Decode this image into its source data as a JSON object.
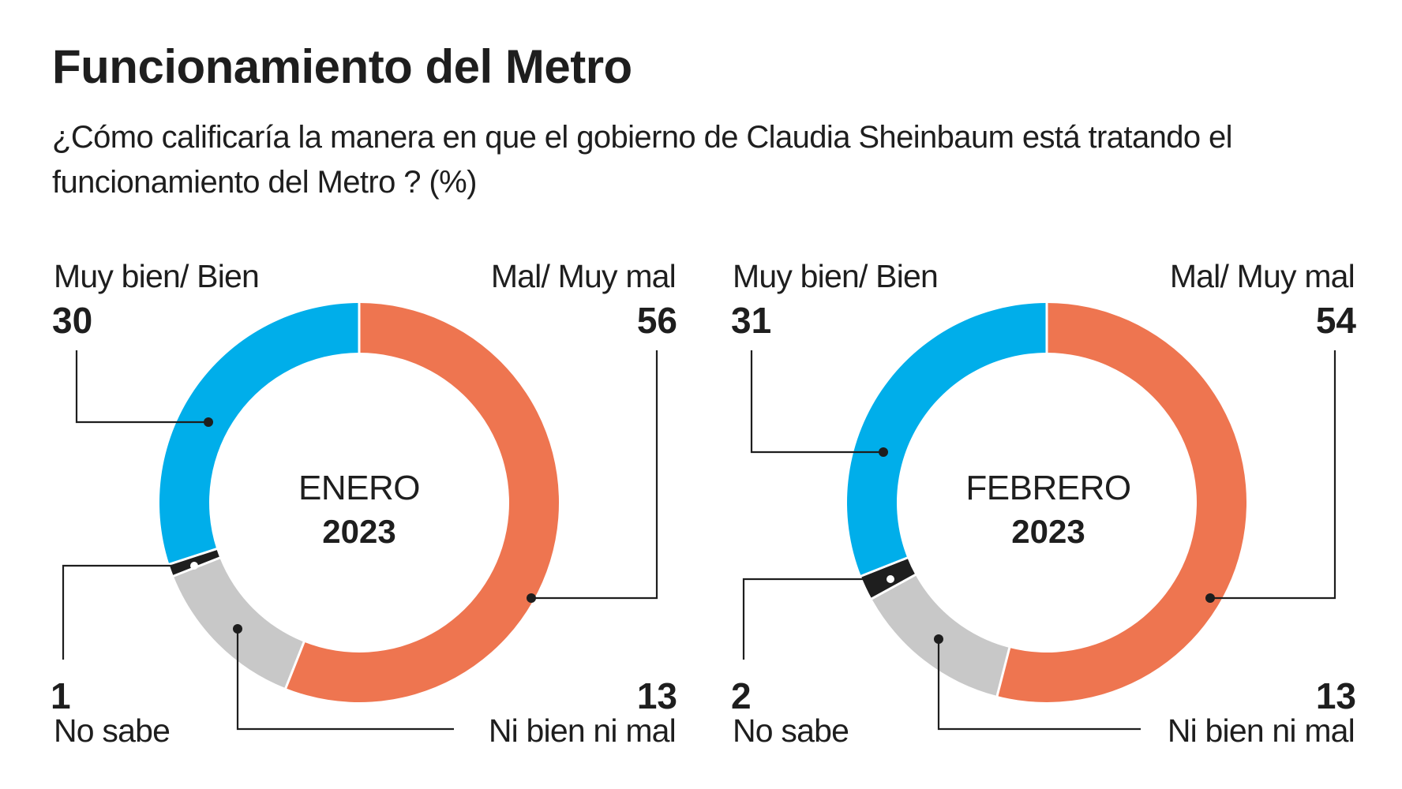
{
  "header": {
    "title": "Funcionamiento del Metro",
    "subtitle": "¿Cómo calificaría la manera en que el gobierno de Claudia Sheinbaum está tratando el funcionamiento del Metro ?  (%)"
  },
  "colors": {
    "mal": "#EE7550",
    "ni_bien": "#C8C8C8",
    "no_sabe": "#1E1E1E",
    "bien": "#00AEEA",
    "separator": "#FFFFFF",
    "text": "#1E1E1E"
  },
  "chart_data": [
    {
      "type": "pie",
      "variant": "donut",
      "title": "Funcionamiento del Metro",
      "center_label": "ENERO",
      "center_year": "2023",
      "unit": "%",
      "categories": [
        "Mal/ Muy mal",
        "Ni bien ni mal",
        "No sabe",
        "Muy bien/ Bien"
      ],
      "values": [
        56,
        13,
        1,
        30
      ],
      "labels": {
        "bien": {
          "name": "Muy bien/ Bien",
          "value": "30"
        },
        "mal": {
          "name": "Mal/ Muy mal",
          "value": "56"
        },
        "no_sabe": {
          "name": "No sabe",
          "value": "1"
        },
        "ni_bien": {
          "name": "Ni bien ni mal",
          "value": "13"
        }
      }
    },
    {
      "type": "pie",
      "variant": "donut",
      "title": "Funcionamiento del Metro",
      "center_label": "FEBRERO",
      "center_year": "2023",
      "unit": "%",
      "categories": [
        "Mal/ Muy mal",
        "Ni bien ni mal",
        "No sabe",
        "Muy bien/ Bien"
      ],
      "values": [
        54,
        13,
        2,
        31
      ],
      "labels": {
        "bien": {
          "name": "Muy bien/ Bien",
          "value": "31"
        },
        "mal": {
          "name": "Mal/ Muy mal",
          "value": "54"
        },
        "no_sabe": {
          "name": "No sabe",
          "value": "2"
        },
        "ni_bien": {
          "name": "Ni bien ni mal",
          "value": "13"
        }
      }
    }
  ]
}
